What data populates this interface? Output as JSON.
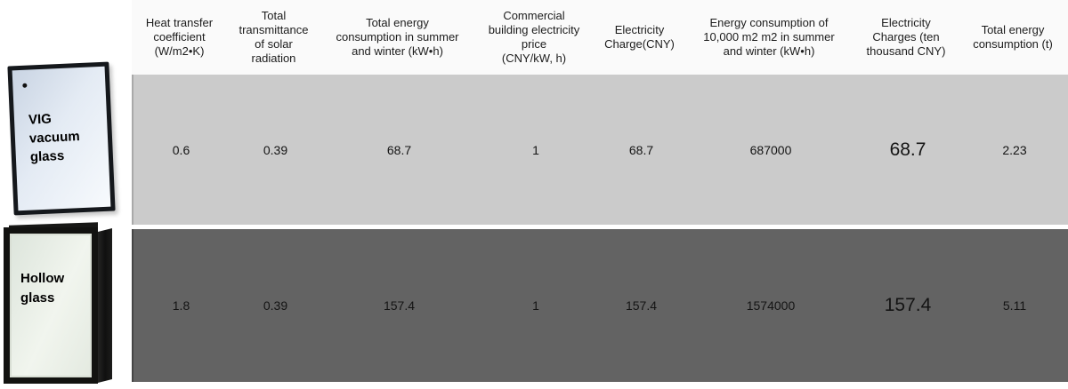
{
  "figure": {
    "description_colors": {
      "row_light_bg": "#cbcbcb",
      "row_dark_bg": "#636363",
      "frame_color": "#151515"
    }
  },
  "left_images": {
    "vig_label": "VIG\nvacuum\nglass",
    "hollow_label": "Hollow\nglass"
  },
  "table": {
    "columns": [
      {
        "id": "heat-transfer-coefficient",
        "label": "Heat transfer\ncoefficient\n(W/m2•K)"
      },
      {
        "id": "solar-transmittance",
        "label": "Total\ntransmittance\nof solar\nradiation"
      },
      {
        "id": "total-energy-summer-winter",
        "label": "Total energy\nconsumption in summer\nand winter (kW•h)"
      },
      {
        "id": "electricity-price",
        "label": "Commercial\nbuilding electricity\nprice\n(CNY/kW, h)"
      },
      {
        "id": "electricity-charge",
        "label": "Electricity\nCharge(CNY)"
      },
      {
        "id": "energy-10000m2",
        "label": "Energy consumption of\n10,000 m2 m2 in summer\nand winter (kW•h)"
      },
      {
        "id": "charges-ten-thousand",
        "label": "Electricity\nCharges (ten\nthousand CNY)"
      },
      {
        "id": "total-energy-t",
        "label": "Total energy\nconsumption (t)"
      }
    ],
    "rows": [
      {
        "id": "vig-vacuum-glass",
        "label": "VIG vacuum glass",
        "values": [
          "0.6",
          "0.39",
          "68.7",
          "1",
          "68.7",
          "687000",
          "68.7",
          "2.23"
        ]
      },
      {
        "id": "hollow-glass",
        "label": "Hollow glass",
        "values": [
          "1.8",
          "0.39",
          "157.4",
          "1",
          "157.4",
          "1574000",
          "157.4",
          "5.11"
        ]
      }
    ]
  },
  "chart_data": {
    "type": "table",
    "columns": [
      "Heat transfer coefficient (W/m2•K)",
      "Total transmittance of solar radiation",
      "Total energy consumption in summer and winter (kW•h)",
      "Commercial building electricity price (CNY/kW, h)",
      "Electricity Charge(CNY)",
      "Energy consumption of 10,000 m2 m2 in summer and winter (kW•h)",
      "Electricity Charges (ten thousand CNY)",
      "Total energy consumption (t)"
    ],
    "rows": [
      {
        "name": "VIG vacuum glass",
        "values": [
          0.6,
          0.39,
          68.7,
          1,
          68.7,
          687000,
          68.7,
          2.23
        ]
      },
      {
        "name": "Hollow glass",
        "values": [
          1.8,
          0.39,
          157.4,
          1,
          157.4,
          1574000,
          157.4,
          5.11
        ]
      }
    ]
  }
}
